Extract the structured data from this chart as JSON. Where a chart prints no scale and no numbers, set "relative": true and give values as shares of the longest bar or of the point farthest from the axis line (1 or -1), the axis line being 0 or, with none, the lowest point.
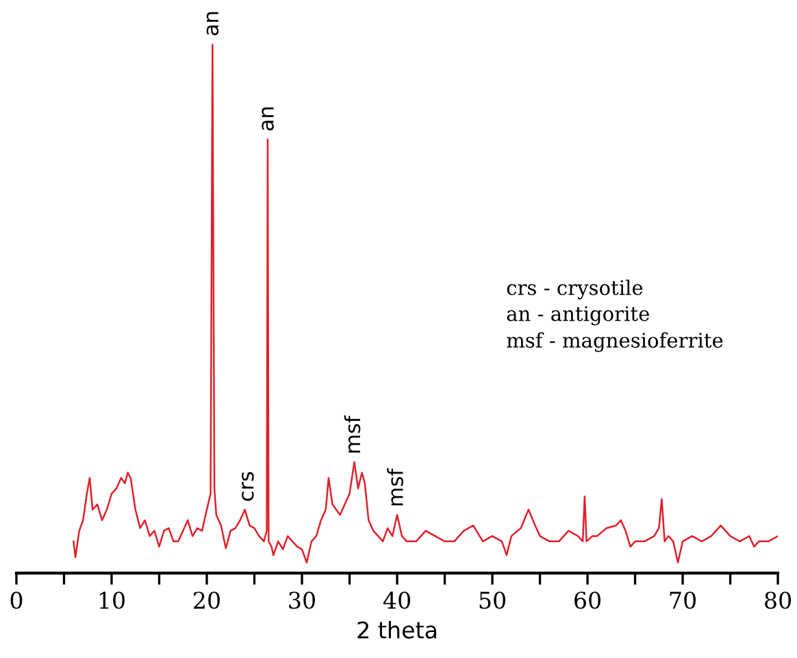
{
  "chart_data": {
    "type": "line",
    "relative": true,
    "xlabel": "2 theta",
    "xlim": [
      0,
      80
    ],
    "xticks": [
      0,
      {
        "value": 5,
        "label": null
      },
      10,
      {
        "value": 15,
        "label": null
      },
      20,
      {
        "value": 25,
        "label": null
      },
      30,
      {
        "value": 35,
        "label": null
      },
      40,
      {
        "value": 45,
        "label": null
      },
      50,
      {
        "value": 55,
        "label": null
      },
      60,
      {
        "value": 65,
        "label": null
      },
      70,
      {
        "value": 75,
        "label": null
      },
      80
    ],
    "grid": false,
    "legend": false,
    "marker": "none",
    "line_style": "solid",
    "series": [
      {
        "color": "#e0202a",
        "x": [
          6,
          6.2,
          6.6,
          7,
          7.4,
          7.7,
          8,
          8.5,
          9,
          9.5,
          10,
          10.5,
          11,
          11.4,
          11.7,
          12,
          12.5,
          13,
          13.5,
          14,
          14.5,
          15,
          15.5,
          16,
          16.5,
          17,
          17.5,
          18,
          18.5,
          19,
          19.5,
          20,
          20.4,
          20.6,
          20.8,
          21,
          21.5,
          22,
          22.5,
          23,
          23.5,
          24,
          24.5,
          25,
          25.5,
          26,
          26.3,
          26.4,
          26.5,
          26.8,
          27,
          27.5,
          28,
          28.5,
          29,
          29.5,
          30,
          30.5,
          31,
          31.5,
          32,
          32.5,
          32.8,
          33.2,
          33.6,
          34,
          34.5,
          35,
          35.5,
          35.9,
          36.3,
          36.6,
          37,
          37.5,
          38,
          38.5,
          39,
          39.5,
          40,
          40.5,
          41,
          42,
          43,
          44,
          45,
          46,
          47,
          48,
          49,
          50,
          51,
          51.5,
          52,
          53,
          53.8,
          54.5,
          55,
          56,
          57,
          58,
          59,
          59.5,
          59.7,
          59.9,
          60.5,
          61,
          62,
          63,
          63.5,
          64,
          64.5,
          65,
          66,
          67,
          67.5,
          67.8,
          68.1,
          68.5,
          69,
          69.5,
          70,
          71,
          72,
          73,
          74,
          75,
          76,
          77,
          77.5,
          78,
          79,
          80
        ],
        "values": [
          0.06,
          0.03,
          0.08,
          0.1,
          0.15,
          0.18,
          0.12,
          0.13,
          0.1,
          0.12,
          0.15,
          0.16,
          0.18,
          0.17,
          0.19,
          0.18,
          0.12,
          0.085,
          0.1,
          0.07,
          0.08,
          0.05,
          0.08,
          0.085,
          0.06,
          0.06,
          0.08,
          0.1,
          0.07,
          0.085,
          0.08,
          0.12,
          0.15,
          1.0,
          0.16,
          0.11,
          0.09,
          0.047,
          0.08,
          0.085,
          0.1,
          0.12,
          0.09,
          0.085,
          0.07,
          0.06,
          0.08,
          0.82,
          0.06,
          0.05,
          0.034,
          0.06,
          0.045,
          0.07,
          0.06,
          0.05,
          0.045,
          0.02,
          0.06,
          0.07,
          0.1,
          0.12,
          0.18,
          0.13,
          0.12,
          0.11,
          0.13,
          0.15,
          0.21,
          0.16,
          0.19,
          0.17,
          0.1,
          0.08,
          0.07,
          0.06,
          0.085,
          0.07,
          0.11,
          0.07,
          0.06,
          0.06,
          0.08,
          0.07,
          0.06,
          0.06,
          0.08,
          0.09,
          0.06,
          0.07,
          0.06,
          0.034,
          0.07,
          0.085,
          0.12,
          0.09,
          0.07,
          0.06,
          0.06,
          0.08,
          0.07,
          0.06,
          0.145,
          0.06,
          0.07,
          0.07,
          0.085,
          0.09,
          0.1,
          0.08,
          0.05,
          0.06,
          0.06,
          0.07,
          0.085,
          0.14,
          0.06,
          0.07,
          0.06,
          0.02,
          0.06,
          0.07,
          0.06,
          0.07,
          0.09,
          0.07,
          0.06,
          0.07,
          0.05,
          0.06,
          0.06,
          0.07
        ]
      }
    ],
    "annotations": [
      {
        "text": "an",
        "x": 20.6,
        "y": 1.0
      },
      {
        "text": "an",
        "x": 26.4,
        "y": 0.82
      },
      {
        "text": "crs",
        "x": 24.3,
        "y": 0.12
      },
      {
        "text": "msf",
        "x": 35.5,
        "y": 0.21
      },
      {
        "text": "msf",
        "x": 40,
        "y": 0.11
      },
      "crs - crysotile",
      "an - antigorite",
      "msf - magnesioferrite"
    ]
  }
}
